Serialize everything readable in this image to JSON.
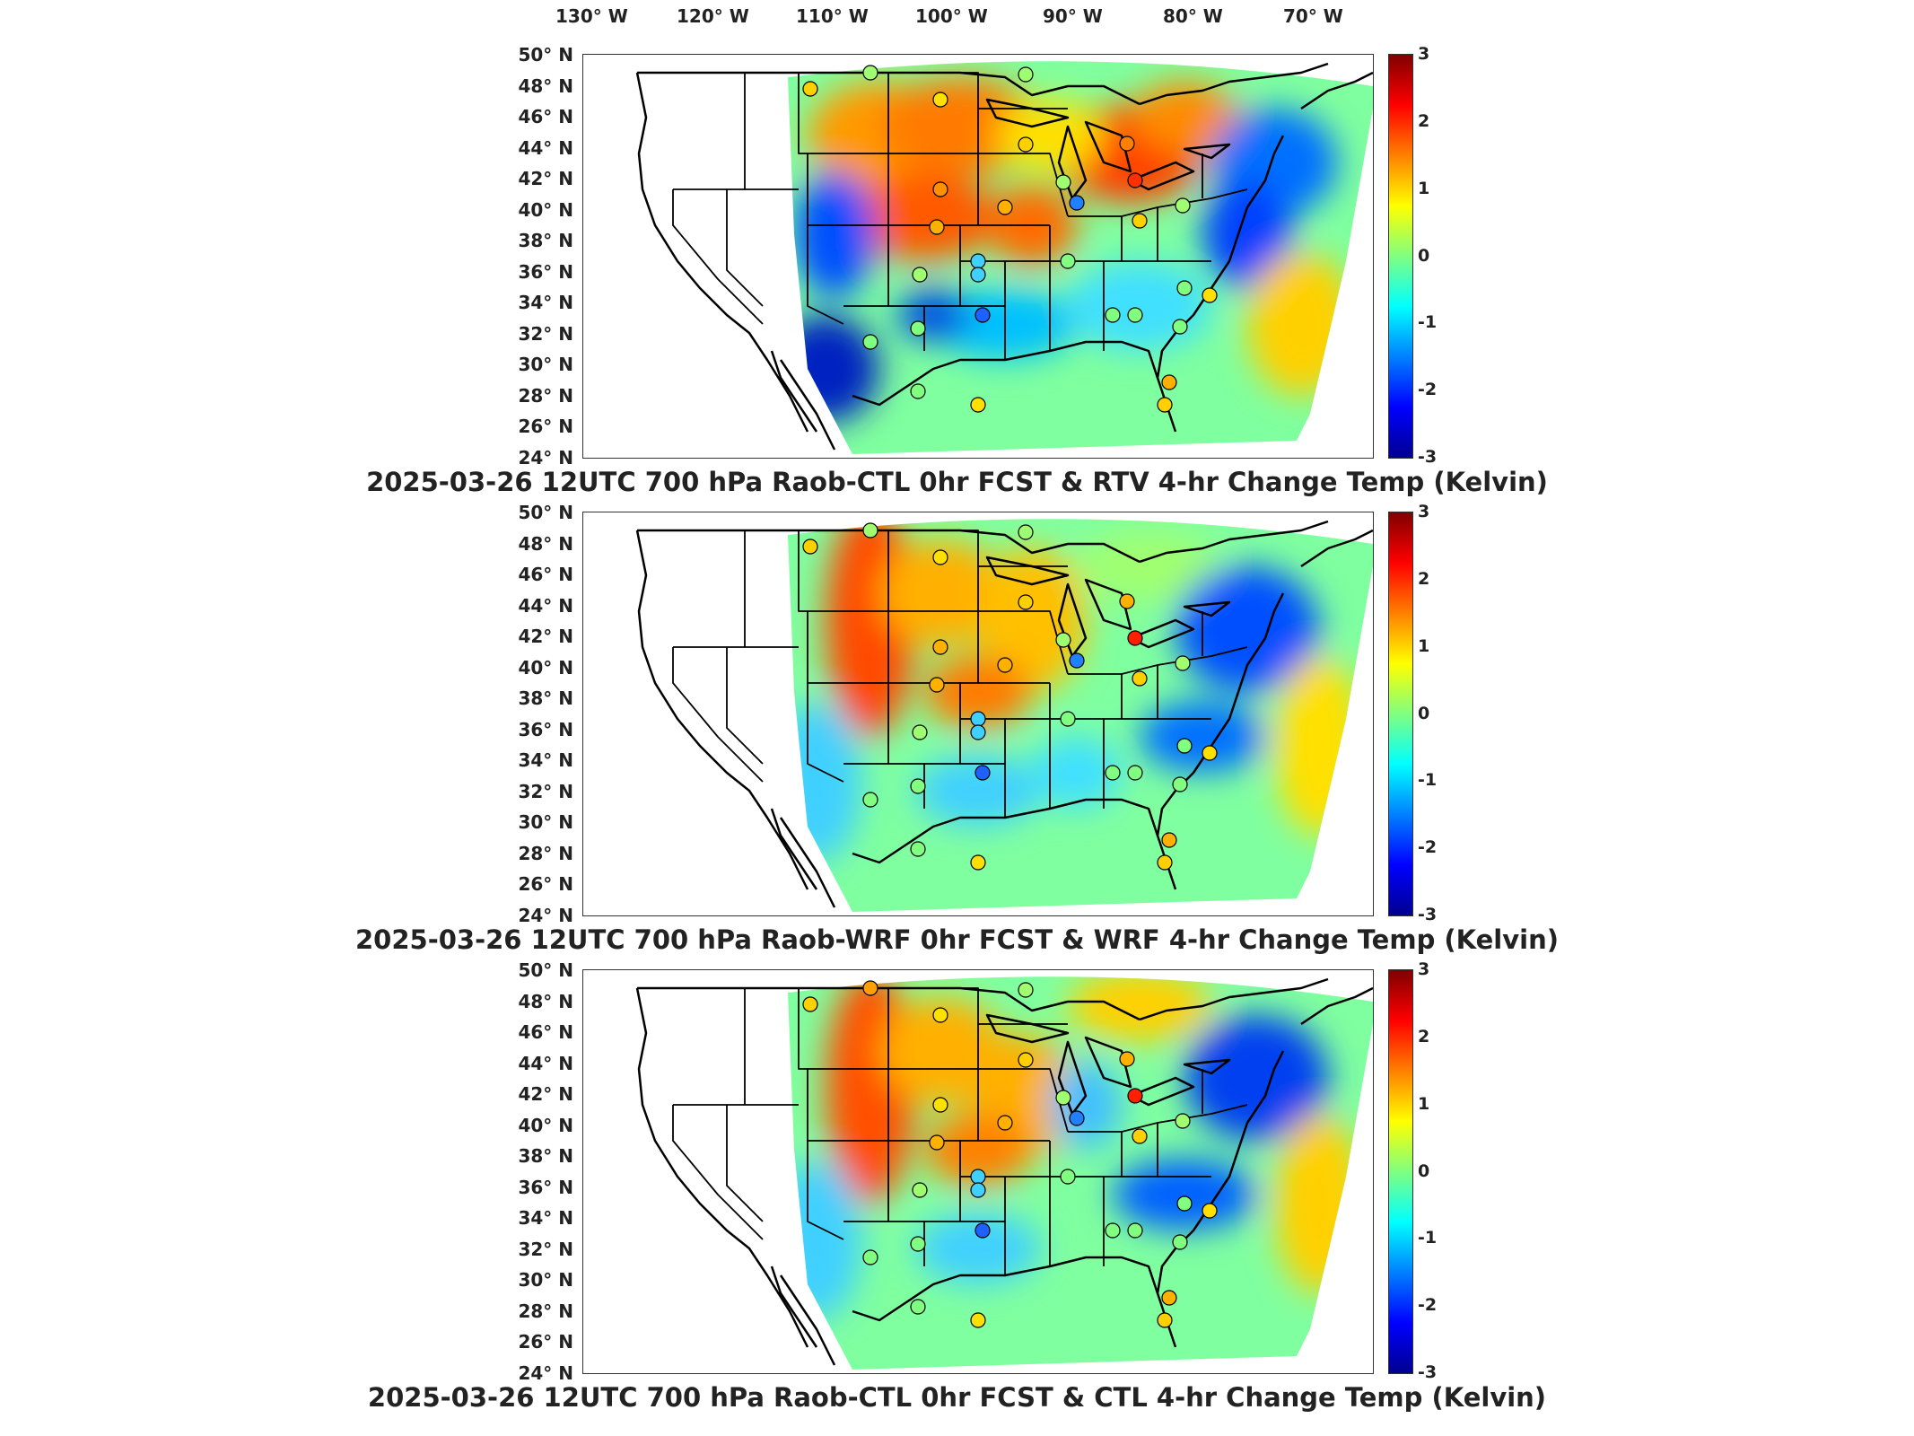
{
  "longitude_labels": [
    "130° W",
    "120° W",
    "110° W",
    "100° W",
    "90° W",
    "80° W",
    "70° W"
  ],
  "latitude_labels": [
    "50° N",
    "48° N",
    "46° N",
    "44° N",
    "42° N",
    "40° N",
    "38° N",
    "36° N",
    "34° N",
    "32° N",
    "30° N",
    "28° N",
    "26° N",
    "24° N"
  ],
  "colorbar": {
    "ticks": [
      "3",
      "2",
      "1",
      "0",
      "-1",
      "-2",
      "-3"
    ],
    "min": -3,
    "max": 3,
    "colormap": "jet"
  },
  "panels": [
    {
      "title": "2025-03-26 12UTC 700 hPa Raob-CTL 0hr FCST & RTV 4-hr Change Temp (Kelvin)"
    },
    {
      "title": "2025-03-26 12UTC 700 hPa Raob-WRF 0hr FCST & WRF 4-hr Change Temp (Kelvin)"
    },
    {
      "title": "2025-03-26 12UTC 700 hPa Raob-CTL 0hr FCST & CTL 4-hr Change Temp (Kelvin)"
    }
  ],
  "colors": {
    "dark_red": "#800000",
    "red": "#ff0000",
    "orange": "#ff8000",
    "yellow": "#ffff00",
    "green": "#80ff80",
    "cyan": "#00ffff",
    "light_blue": "#0080ff",
    "blue": "#0000ff",
    "dark_blue": "#00008f"
  }
}
